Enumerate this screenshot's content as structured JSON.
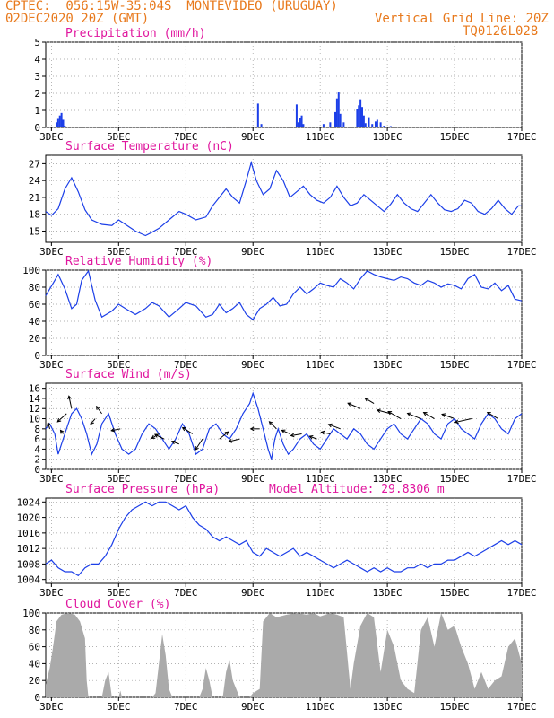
{
  "header": {
    "line1": "CPTEC:  056:15W-35:04S  MONTEVIDEO (URUGUAY)",
    "line2": "02DEC2020 20Z (GMT)",
    "grid_note": "Vertical Grid Line: 20Z",
    "code": "TQ0126L028"
  },
  "colors": {
    "header": "#e8791c",
    "title": "#e0169e",
    "series": "#1c3fe8",
    "cloud": "#aaaaaa",
    "wind": "#000000"
  },
  "x_ticks": [
    "3DEC",
    "5DEC",
    "7DEC",
    "9DEC",
    "11DEC",
    "13DEC",
    "15DEC",
    "17DEC"
  ],
  "chart_data": [
    {
      "type": "bar",
      "title": "Precipitation (mm/h)",
      "x_range_days": [
        2.83,
        17.0
      ],
      "ylim": [
        0,
        5
      ],
      "yticks": [
        0,
        1,
        2,
        3,
        4,
        5
      ],
      "x_ticks": [
        "3DEC",
        "5DEC",
        "7DEC",
        "9DEC",
        "11DEC",
        "13DEC",
        "15DEC",
        "17DEC"
      ],
      "points": [
        [
          2.95,
          0.05
        ],
        [
          3.1,
          0.04
        ],
        [
          3.15,
          0.3
        ],
        [
          3.2,
          0.5
        ],
        [
          3.25,
          0.7
        ],
        [
          3.3,
          0.85
        ],
        [
          3.35,
          0.45
        ],
        [
          3.4,
          0.1
        ],
        [
          4.5,
          0.04
        ],
        [
          5.1,
          0.03
        ],
        [
          8.1,
          0.03
        ],
        [
          9.15,
          1.4
        ],
        [
          9.25,
          0.2
        ],
        [
          9.8,
          0.05
        ],
        [
          10.3,
          1.35
        ],
        [
          10.35,
          0.3
        ],
        [
          10.4,
          0.55
        ],
        [
          10.45,
          0.7
        ],
        [
          10.5,
          0.2
        ],
        [
          11.1,
          0.2
        ],
        [
          11.3,
          0.3
        ],
        [
          11.45,
          0.9
        ],
        [
          11.5,
          1.7
        ],
        [
          11.55,
          2.05
        ],
        [
          11.6,
          0.8
        ],
        [
          11.7,
          0.3
        ],
        [
          12.0,
          0.05
        ],
        [
          12.1,
          1.1
        ],
        [
          12.15,
          1.3
        ],
        [
          12.2,
          1.65
        ],
        [
          12.25,
          1.2
        ],
        [
          12.3,
          0.7
        ],
        [
          12.35,
          0.25
        ],
        [
          12.45,
          0.6
        ],
        [
          12.55,
          0.2
        ],
        [
          12.65,
          0.35
        ],
        [
          12.7,
          0.45
        ],
        [
          12.8,
          0.3
        ],
        [
          12.9,
          0.1
        ],
        [
          13.1,
          0.08
        ],
        [
          13.6,
          0.04
        ],
        [
          15.2,
          0.03
        ],
        [
          16.1,
          0.04
        ]
      ]
    },
    {
      "type": "line",
      "title": "Surface Temperature (nC)",
      "x_range_days": [
        2.83,
        17.0
      ],
      "ylim": [
        13,
        28.5
      ],
      "yticks": [
        15,
        18,
        21,
        24,
        27
      ],
      "x_ticks": [
        "3DEC",
        "5DEC",
        "7DEC",
        "9DEC",
        "11DEC",
        "13DEC",
        "15DEC",
        "17DEC"
      ],
      "x": [
        2.83,
        3.0,
        3.2,
        3.4,
        3.6,
        3.8,
        4.0,
        4.2,
        4.5,
        4.8,
        5.0,
        5.2,
        5.5,
        5.8,
        6.0,
        6.2,
        6.5,
        6.8,
        7.0,
        7.3,
        7.6,
        7.8,
        8.0,
        8.2,
        8.4,
        8.6,
        8.8,
        8.95,
        9.1,
        9.3,
        9.5,
        9.7,
        9.9,
        10.1,
        10.3,
        10.5,
        10.7,
        10.9,
        11.1,
        11.3,
        11.5,
        11.7,
        11.9,
        12.1,
        12.3,
        12.5,
        12.7,
        12.9,
        13.1,
        13.3,
        13.5,
        13.7,
        13.9,
        14.1,
        14.3,
        14.5,
        14.7,
        14.9,
        15.1,
        15.3,
        15.5,
        15.7,
        15.9,
        16.1,
        16.3,
        16.5,
        16.7,
        16.9,
        17.0
      ],
      "values": [
        18.5,
        17.8,
        19.0,
        22.5,
        24.5,
        22.0,
        18.8,
        17.0,
        16.2,
        16.0,
        17.0,
        16.2,
        15.0,
        14.2,
        14.8,
        15.5,
        17.0,
        18.5,
        18.0,
        17.0,
        17.5,
        19.5,
        21.0,
        22.5,
        21.0,
        20.0,
        24.0,
        27.2,
        24.0,
        21.5,
        22.5,
        25.8,
        24.0,
        21.0,
        22.0,
        23.0,
        21.5,
        20.5,
        20.0,
        21.0,
        23.0,
        21.0,
        19.5,
        20.0,
        21.5,
        20.5,
        19.5,
        18.5,
        19.8,
        21.5,
        20.0,
        19.0,
        18.5,
        20.0,
        21.5,
        20.0,
        18.8,
        18.5,
        19.0,
        20.5,
        20.0,
        18.5,
        18.0,
        19.0,
        20.5,
        19.0,
        18.0,
        19.5,
        19.5
      ]
    },
    {
      "type": "line",
      "title": "Relative Humidity (%)",
      "x_range_days": [
        2.83,
        17.0
      ],
      "ylim": [
        0,
        100
      ],
      "yticks": [
        0,
        20,
        40,
        60,
        80,
        100
      ],
      "x_ticks": [
        "3DEC",
        "5DEC",
        "7DEC",
        "9DEC",
        "11DEC",
        "13DEC",
        "15DEC",
        "17DEC"
      ],
      "x": [
        2.83,
        2.95,
        3.1,
        3.2,
        3.4,
        3.6,
        3.75,
        3.9,
        4.1,
        4.3,
        4.5,
        4.8,
        5.0,
        5.2,
        5.5,
        5.8,
        6.0,
        6.2,
        6.5,
        6.8,
        7.0,
        7.3,
        7.6,
        7.8,
        8.0,
        8.2,
        8.4,
        8.6,
        8.8,
        9.0,
        9.2,
        9.4,
        9.6,
        9.8,
        10.0,
        10.2,
        10.4,
        10.6,
        10.8,
        11.0,
        11.2,
        11.4,
        11.6,
        11.8,
        12.0,
        12.2,
        12.4,
        12.6,
        12.8,
        13.0,
        13.2,
        13.4,
        13.6,
        13.8,
        14.0,
        14.2,
        14.4,
        14.6,
        14.8,
        15.0,
        15.2,
        15.4,
        15.6,
        15.8,
        16.0,
        16.2,
        16.4,
        16.6,
        16.8,
        17.0
      ],
      "values": [
        70,
        78,
        88,
        95,
        78,
        55,
        60,
        88,
        99,
        65,
        45,
        52,
        60,
        55,
        48,
        55,
        62,
        58,
        45,
        55,
        62,
        58,
        45,
        48,
        60,
        50,
        55,
        62,
        48,
        42,
        55,
        60,
        68,
        58,
        60,
        72,
        80,
        72,
        78,
        85,
        82,
        80,
        90,
        85,
        78,
        90,
        99,
        95,
        92,
        90,
        88,
        92,
        90,
        85,
        82,
        88,
        85,
        80,
        84,
        82,
        78,
        90,
        95,
        80,
        78,
        85,
        76,
        82,
        66,
        64
      ]
    },
    {
      "type": "line",
      "title": "Surface Wind (m/s)",
      "x_range_days": [
        2.83,
        17.0
      ],
      "ylim": [
        0,
        17
      ],
      "yticks": [
        0,
        2,
        4,
        6,
        8,
        10,
        12,
        14,
        16
      ],
      "x_ticks": [
        "3DEC",
        "5DEC",
        "7DEC",
        "9DEC",
        "11DEC",
        "13DEC",
        "15DEC",
        "17DEC"
      ],
      "x": [
        2.83,
        2.95,
        3.1,
        3.2,
        3.3,
        3.45,
        3.6,
        3.75,
        3.9,
        4.05,
        4.2,
        4.35,
        4.5,
        4.7,
        4.9,
        5.1,
        5.3,
        5.5,
        5.7,
        5.9,
        6.1,
        6.3,
        6.5,
        6.7,
        6.9,
        7.1,
        7.3,
        7.5,
        7.7,
        7.9,
        8.1,
        8.3,
        8.5,
        8.7,
        8.9,
        9.0,
        9.15,
        9.3,
        9.45,
        9.55,
        9.65,
        9.75,
        9.9,
        10.05,
        10.2,
        10.4,
        10.6,
        10.8,
        11.0,
        11.2,
        11.4,
        11.6,
        11.8,
        12.0,
        12.2,
        12.4,
        12.6,
        12.8,
        13.0,
        13.2,
        13.4,
        13.6,
        13.8,
        14.0,
        14.2,
        14.4,
        14.6,
        14.8,
        15.0,
        15.2,
        15.4,
        15.6,
        15.8,
        16.0,
        16.2,
        16.4,
        16.6,
        16.8,
        17.0
      ],
      "values": [
        8,
        9,
        7,
        3,
        5,
        8,
        11,
        12,
        10,
        7,
        3,
        5,
        9,
        11,
        7,
        4,
        3,
        4,
        7,
        9,
        8,
        6,
        4,
        6,
        9,
        7,
        3,
        4,
        8,
        9,
        7,
        6,
        8,
        11,
        13,
        15,
        12,
        8,
        4,
        2,
        6,
        8,
        5,
        3,
        4,
        6,
        7,
        5,
        4,
        6,
        8,
        7,
        6,
        8,
        7,
        5,
        4,
        6,
        8,
        9,
        7,
        6,
        8,
        10,
        9,
        7,
        6,
        9,
        10,
        8,
        7,
        6,
        9,
        11,
        10,
        8,
        7,
        10,
        11
      ],
      "vectors": [
        [
          2.95,
          8,
          -2,
          -7
        ],
        [
          3.35,
          7,
          -3,
          -4
        ],
        [
          3.45,
          11,
          -10,
          9
        ],
        [
          3.6,
          12,
          -3,
          -14
        ],
        [
          4.3,
          10,
          -5,
          6
        ],
        [
          4.5,
          11,
          -6,
          -8
        ],
        [
          5.05,
          8,
          -10,
          2
        ],
        [
          6.2,
          7,
          -8,
          5
        ],
        [
          6.35,
          6,
          -10,
          -5
        ],
        [
          6.8,
          5,
          -8,
          -3
        ],
        [
          7.2,
          7,
          -11,
          -7
        ],
        [
          7.5,
          6,
          -8,
          12
        ],
        [
          8.0,
          6,
          10,
          -8
        ],
        [
          8.6,
          6,
          -12,
          3
        ],
        [
          9.2,
          8,
          -10,
          0
        ],
        [
          9.7,
          8,
          -8,
          -8
        ],
        [
          10.1,
          7,
          -9,
          -4
        ],
        [
          10.45,
          7,
          -12,
          2
        ],
        [
          10.9,
          6,
          -8,
          -3
        ],
        [
          11.3,
          7,
          -10,
          -2
        ],
        [
          11.6,
          8,
          -13,
          -5
        ],
        [
          12.2,
          12,
          -14,
          -6
        ],
        [
          12.6,
          13,
          -10,
          -6
        ],
        [
          13.1,
          11,
          -15,
          -4
        ],
        [
          13.4,
          10,
          -14,
          -8
        ],
        [
          14.0,
          10,
          -15,
          -6
        ],
        [
          14.4,
          10,
          -12,
          -7
        ],
        [
          15.0,
          10,
          -14,
          -5
        ],
        [
          15.5,
          10,
          -18,
          4
        ],
        [
          16.3,
          10,
          -12,
          -7
        ]
      ]
    },
    {
      "type": "line",
      "title": "Surface Pressure (hPa)",
      "note": "Model Altitude: 29.8306 m",
      "x_range_days": [
        2.83,
        17.0
      ],
      "ylim": [
        1003,
        1025
      ],
      "yticks": [
        1004,
        1008,
        1012,
        1016,
        1020,
        1024
      ],
      "x_ticks": [
        "3DEC",
        "5DEC",
        "7DEC",
        "9DEC",
        "11DEC",
        "13DEC",
        "15DEC",
        "17DEC"
      ],
      "x": [
        2.83,
        3.0,
        3.2,
        3.4,
        3.6,
        3.8,
        4.0,
        4.2,
        4.4,
        4.6,
        4.8,
        5.0,
        5.2,
        5.4,
        5.6,
        5.8,
        6.0,
        6.2,
        6.4,
        6.6,
        6.8,
        7.0,
        7.2,
        7.4,
        7.6,
        7.8,
        8.0,
        8.2,
        8.4,
        8.6,
        8.8,
        9.0,
        9.2,
        9.4,
        9.6,
        9.8,
        10.0,
        10.2,
        10.4,
        10.6,
        10.8,
        11.0,
        11.2,
        11.4,
        11.6,
        11.8,
        12.0,
        12.2,
        12.4,
        12.6,
        12.8,
        13.0,
        13.2,
        13.4,
        13.6,
        13.8,
        14.0,
        14.2,
        14.4,
        14.6,
        14.8,
        15.0,
        15.2,
        15.4,
        15.6,
        15.8,
        16.0,
        16.2,
        16.4,
        16.6,
        16.8,
        17.0
      ],
      "values": [
        1008,
        1009,
        1007,
        1006,
        1006,
        1005,
        1007,
        1008,
        1008,
        1010,
        1013,
        1017,
        1020,
        1022,
        1023,
        1024,
        1023,
        1024,
        1024,
        1023,
        1022,
        1023,
        1020,
        1018,
        1017,
        1015,
        1014,
        1015,
        1014,
        1013,
        1014,
        1011,
        1010,
        1012,
        1011,
        1010,
        1011,
        1012,
        1010,
        1011,
        1010,
        1009,
        1008,
        1007,
        1008,
        1009,
        1008,
        1007,
        1006,
        1007,
        1006,
        1007,
        1006,
        1006,
        1007,
        1007,
        1008,
        1007,
        1008,
        1008,
        1009,
        1009,
        1010,
        1011,
        1010,
        1011,
        1012,
        1013,
        1014,
        1013,
        1014,
        1013
      ]
    },
    {
      "type": "area",
      "title": "Cloud Cover (%)",
      "x_range_days": [
        2.83,
        17.0
      ],
      "ylim": [
        0,
        100
      ],
      "yticks": [
        0,
        20,
        40,
        60,
        80,
        100
      ],
      "x_ticks": [
        "3DEC",
        "5DEC",
        "7DEC",
        "9DEC",
        "11DEC",
        "13DEC",
        "15DEC",
        "17DEC"
      ],
      "x": [
        2.83,
        2.95,
        3.05,
        3.15,
        3.3,
        3.5,
        3.7,
        3.85,
        4.0,
        4.05,
        4.1,
        4.5,
        4.6,
        4.7,
        4.8,
        5.0,
        5.05,
        5.1,
        5.3,
        6.0,
        6.1,
        6.2,
        6.3,
        6.4,
        6.5,
        6.6,
        6.7,
        6.8,
        7.0,
        7.4,
        7.5,
        7.6,
        7.7,
        7.8,
        8.0,
        8.1,
        8.2,
        8.3,
        8.4,
        8.5,
        8.6,
        8.7,
        8.9,
        9.0,
        9.2,
        9.3,
        9.5,
        9.7,
        10.0,
        10.3,
        10.6,
        10.8,
        11.0,
        11.3,
        11.5,
        11.7,
        11.9,
        12.0,
        12.2,
        12.4,
        12.6,
        12.8,
        13.0,
        13.2,
        13.4,
        13.6,
        13.8,
        14.0,
        14.2,
        14.4,
        14.6,
        14.8,
        15.0,
        15.2,
        15.4,
        15.6,
        15.8,
        16.0,
        16.2,
        16.4,
        16.6,
        16.8,
        17.0
      ],
      "values": [
        15,
        35,
        60,
        90,
        98,
        100,
        98,
        90,
        70,
        20,
        0,
        0,
        20,
        30,
        0,
        0,
        8,
        0,
        0,
        0,
        5,
        40,
        75,
        50,
        10,
        0,
        0,
        0,
        0,
        0,
        10,
        35,
        20,
        0,
        0,
        0,
        30,
        45,
        20,
        10,
        0,
        0,
        0,
        5,
        10,
        90,
        100,
        95,
        98,
        100,
        98,
        100,
        96,
        100,
        98,
        95,
        10,
        40,
        85,
        100,
        95,
        30,
        80,
        60,
        20,
        10,
        5,
        80,
        95,
        60,
        100,
        80,
        85,
        60,
        40,
        10,
        30,
        10,
        20,
        25,
        60,
        70,
        40
      ]
    }
  ]
}
